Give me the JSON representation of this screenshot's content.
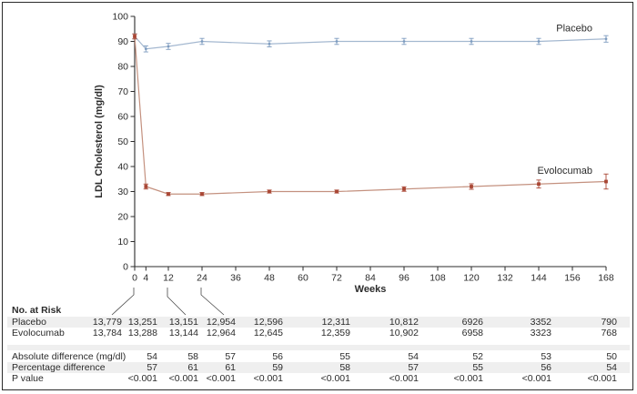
{
  "chart_data": {
    "type": "line",
    "title": "",
    "xlabel": "Weeks",
    "ylabel": "LDL Cholesterol (mg/dl)",
    "xlim": [
      0,
      168
    ],
    "ylim": [
      0,
      100
    ],
    "x_ticks": [
      0,
      4,
      12,
      24,
      36,
      48,
      60,
      72,
      84,
      96,
      108,
      120,
      132,
      144,
      156,
      168
    ],
    "y_ticks": [
      0,
      10,
      20,
      30,
      40,
      50,
      60,
      70,
      80,
      90,
      100
    ],
    "grid": false,
    "legend_position": "end-of-line-labels",
    "x": [
      0,
      4,
      12,
      24,
      48,
      72,
      96,
      120,
      144,
      168
    ],
    "series": [
      {
        "name": "Placebo",
        "marker": "circle",
        "line_color": "#a4b8d0",
        "marker_color": "#7d9bbf",
        "values": [
          92,
          87,
          88,
          90,
          89,
          90,
          90,
          90,
          90,
          91
        ],
        "error": [
          1,
          1.2,
          1.2,
          1.2,
          1.2,
          1.2,
          1.2,
          1.2,
          1.2,
          1.3
        ]
      },
      {
        "name": "Evolocumab",
        "marker": "square",
        "line_color": "#c4917f",
        "marker_color": "#a94634",
        "values": [
          92,
          32,
          29,
          29,
          30,
          30,
          31,
          32,
          33,
          34
        ],
        "error": [
          1,
          1,
          0.6,
          0.6,
          0.6,
          0.6,
          0.9,
          1.1,
          1.6,
          3
        ]
      }
    ],
    "axis_color": "#2b2b2b",
    "connector_color": "#4a4a4a"
  },
  "risk_table": {
    "header": "No. at Risk",
    "rows": [
      {
        "label": "Placebo",
        "values": [
          "13,779",
          "13,251",
          "13,151",
          "12,954",
          "12,596",
          "12,311",
          "10,812",
          "6926",
          "3352",
          "790"
        ]
      },
      {
        "label": "Evolocumab",
        "values": [
          "13,784",
          "13,288",
          "13,144",
          "12,964",
          "12,645",
          "12,359",
          "10,902",
          "6958",
          "3323",
          "768"
        ]
      }
    ],
    "stats": [
      {
        "label": "Absolute difference (mg/dl)",
        "values": [
          "54",
          "58",
          "57",
          "56",
          "55",
          "54",
          "52",
          "53",
          "50"
        ]
      },
      {
        "label": "Percentage difference",
        "values": [
          "57",
          "61",
          "61",
          "59",
          "58",
          "57",
          "55",
          "56",
          "54"
        ]
      },
      {
        "label": "P value",
        "values": [
          "<0.001",
          "<0.001",
          "<0.001",
          "<0.001",
          "<0.001",
          "<0.001",
          "<0.001",
          "<0.001",
          "<0.001"
        ]
      }
    ]
  }
}
